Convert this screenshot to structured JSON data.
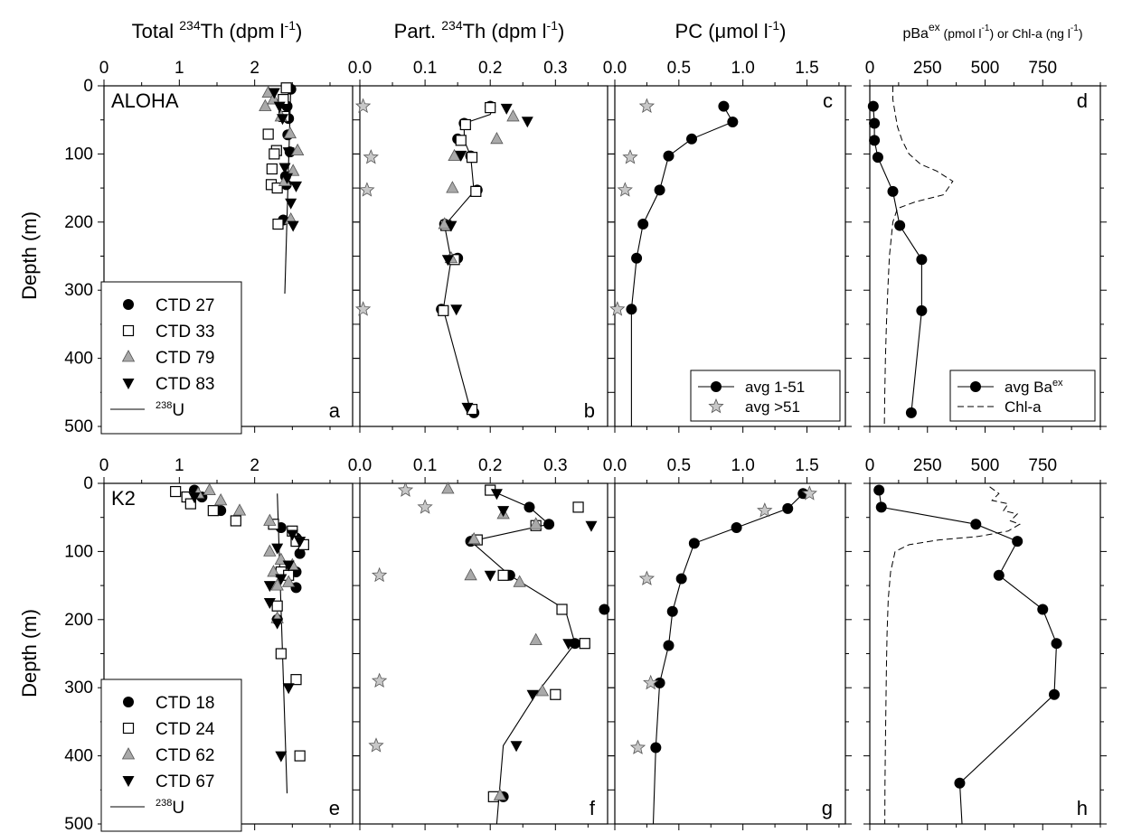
{
  "colors": {
    "ink": "#000000",
    "grey_marker": "#a9a9a9",
    "star_fill": "#c8c8c8",
    "background": "#ffffff"
  },
  "column_headers": [
    {
      "main": "Total ",
      "sup": "234",
      "tail": "Th (dpm l",
      "sup2": "-1",
      "end": ")"
    },
    {
      "main": "Part. ",
      "sup": "234",
      "tail": "Th (dpm l",
      "sup2": "-1",
      "end": ")"
    },
    {
      "main": "PC (",
      "mu": "μ",
      "tail": "mol l",
      "sup2": "-1",
      "end": ")"
    },
    {
      "main": "pBa",
      "sup": "ex",
      "tail": " (pmol l",
      "sup2": "-1",
      "mid": ") or Chl-a (ng l",
      "sup3": "-1",
      "end": ")"
    }
  ],
  "ylabel": "Depth (m)",
  "chart_data": [
    {
      "panel": "a",
      "station": "ALOHA",
      "type": "scatter",
      "xlim": [
        0,
        3.3
      ],
      "ylim": [
        0,
        500
      ],
      "xticks": [
        "0",
        "1",
        "2"
      ],
      "xtick_values": [
        0,
        1,
        2
      ],
      "yticks": [
        "0",
        "100",
        "200",
        "300",
        "400",
        "500"
      ],
      "legend": {
        "placement": "bottom-left",
        "entries": [
          "CTD 27",
          "CTD 33",
          "CTD 79",
          "CTD 83"
        ],
        "line_entry": {
          "sup": "238",
          "text": "U"
        }
      },
      "series": [
        {
          "name": "CTD 27",
          "marker": "circle",
          "x": [
            2.48,
            2.43,
            2.45,
            2.44,
            2.47,
            2.41,
            2.42,
            2.38
          ],
          "y": [
            5,
            30,
            48,
            72,
            97,
            133,
            145,
            197
          ]
        },
        {
          "name": "CTD 33",
          "marker": "square",
          "x": [
            2.42,
            2.38,
            2.39,
            2.18,
            2.29,
            2.26,
            2.23,
            2.22,
            2.3,
            2.31
          ],
          "y": [
            3,
            20,
            45,
            71,
            95,
            100,
            122,
            145,
            150,
            203
          ]
        },
        {
          "name": "CTD 79",
          "marker": "triangle-up",
          "x": [
            2.18,
            2.25,
            2.14,
            2.35,
            2.57,
            2.47,
            2.51,
            2.4,
            2.48
          ],
          "y": [
            10,
            20,
            30,
            45,
            95,
            70,
            125,
            140,
            196
          ]
        },
        {
          "name": "CTD 83",
          "marker": "triangle-down",
          "x": [
            2.26,
            2.33,
            2.37,
            2.45,
            2.4,
            2.43,
            2.55,
            2.48,
            2.51
          ],
          "y": [
            10,
            30,
            48,
            97,
            120,
            135,
            147,
            172,
            205
          ]
        }
      ],
      "line": {
        "name": "238U",
        "x": [
          2.48,
          2.4
        ],
        "y": [
          0,
          305
        ]
      }
    },
    {
      "panel": "b",
      "type": "scatter",
      "xlim": [
        0,
        0.38
      ],
      "ylim": [
        0,
        500
      ],
      "xticks": [
        "0.0",
        "0.1",
        "0.2",
        "0.3"
      ],
      "xtick_values": [
        0,
        0.1,
        0.2,
        0.3
      ],
      "series": [
        {
          "name": "CTD 27",
          "marker": "circle",
          "x": [
            0.2,
            0.16,
            0.15,
            0.17,
            0.18,
            0.13,
            0.15,
            0.125,
            0.175
          ],
          "y": [
            30,
            55,
            78,
            103,
            153,
            203,
            253,
            328,
            480
          ]
        },
        {
          "name": "CTD 33",
          "marker": "square",
          "x": [
            0.2,
            0.162,
            0.155,
            0.172,
            0.178,
            0.132,
            0.145,
            0.128,
            0.172
          ],
          "y": [
            32,
            57,
            80,
            105,
            155,
            205,
            255,
            330,
            475
          ]
        },
        {
          "name": "CTD 79",
          "marker": "triangle-up",
          "x": [
            0.235,
            0.21,
            0.145,
            0.142,
            0.13,
            0.14
          ],
          "y": [
            45,
            78,
            103,
            150,
            203,
            253
          ]
        },
        {
          "name": "CTD 83",
          "marker": "triangle-down",
          "x": [
            0.225,
            0.257,
            0.155,
            0.14,
            0.135,
            0.148,
            0.165
          ],
          "y": [
            33,
            52,
            102,
            205,
            255,
            328,
            472
          ]
        },
        {
          "name": "avg >51",
          "marker": "star",
          "x": [
            0.005,
            0.017,
            0.011,
            0.005
          ],
          "y": [
            30,
            105,
            153,
            328
          ]
        }
      ],
      "line": {
        "x": [
          0.205,
          0.2,
          0.16,
          0.16,
          0.17,
          0.175,
          0.13,
          0.14,
          0.128,
          0.17
        ],
        "y": [
          30,
          42,
          55,
          80,
          103,
          155,
          205,
          255,
          328,
          477
        ]
      }
    },
    {
      "panel": "c",
      "type": "scatter",
      "xlim": [
        0,
        1.8
      ],
      "ylim": [
        0,
        500
      ],
      "xticks": [
        "0.0",
        "0.5",
        "1.0",
        "1.5"
      ],
      "xtick_values": [
        0,
        0.5,
        1,
        1.5
      ],
      "legend": {
        "placement": "bottom-right",
        "entries": [
          "avg 1-51",
          "avg >51"
        ]
      },
      "series": [
        {
          "name": "avg 1-51",
          "marker": "circle",
          "x": [
            0.85,
            0.92,
            0.6,
            0.42,
            0.35,
            0.22,
            0.17,
            0.13
          ],
          "y": [
            30,
            53,
            78,
            103,
            153,
            203,
            253,
            328
          ]
        },
        {
          "name": "avg >51",
          "marker": "star",
          "x": [
            0.25,
            0.12,
            0.08,
            0.02
          ],
          "y": [
            30,
            105,
            153,
            328
          ]
        }
      ],
      "line": {
        "x": [
          0.85,
          0.92,
          0.6,
          0.42,
          0.35,
          0.22,
          0.17,
          0.13,
          0.13
        ],
        "y": [
          30,
          53,
          78,
          103,
          153,
          203,
          253,
          328,
          500
        ]
      }
    },
    {
      "panel": "d",
      "type": "scatter",
      "xlim": [
        0,
        1000
      ],
      "ylim": [
        0,
        500
      ],
      "xticks": [
        "0",
        "250",
        "500",
        "750"
      ],
      "xtick_values": [
        0,
        250,
        500,
        750
      ],
      "legend": {
        "placement": "bottom-right",
        "entries": [
          {
            "text": "avg Ba",
            "sup": "ex"
          },
          {
            "text": "Chl-a"
          }
        ]
      },
      "series": [
        {
          "name": "avg Baex",
          "marker": "circle",
          "x": [
            15,
            20,
            20,
            35,
            100,
            130,
            225,
            225,
            180
          ],
          "y": [
            30,
            55,
            80,
            105,
            155,
            205,
            255,
            330,
            480
          ]
        },
        {
          "name": "Chl-a",
          "style": "dashed",
          "x": [
            100,
            100,
            110,
            120,
            140,
            170,
            220,
            290,
            360,
            320,
            200,
            120,
            100,
            85,
            78,
            72,
            68,
            65,
            63
          ],
          "y": [
            0,
            20,
            40,
            60,
            80,
            100,
            115,
            125,
            140,
            160,
            170,
            180,
            200,
            250,
            300,
            350,
            400,
            450,
            500
          ]
        }
      ],
      "line": {
        "x": [
          15,
          20,
          20,
          35,
          100,
          130,
          225,
          225,
          180
        ],
        "y": [
          30,
          55,
          80,
          105,
          155,
          205,
          255,
          330,
          480
        ]
      }
    },
    {
      "panel": "e",
      "station": "K2",
      "type": "scatter",
      "xlim": [
        0,
        3.3
      ],
      "ylim": [
        0,
        500
      ],
      "xticks": [
        "0",
        "1",
        "2"
      ],
      "xtick_values": [
        0,
        1,
        2
      ],
      "yticks": [
        "0",
        "100",
        "200",
        "300",
        "400",
        "500"
      ],
      "legend": {
        "placement": "bottom-left",
        "entries": [
          "CTD 18",
          "CTD 24",
          "CTD 62",
          "CTD 67"
        ],
        "line_entry": {
          "sup": "238",
          "text": "U"
        }
      },
      "series": [
        {
          "name": "CTD 18",
          "marker": "circle",
          "x": [
            1.2,
            1.3,
            1.55,
            2.35,
            2.55,
            2.6,
            2.55,
            2.55,
            2.3
          ],
          "y": [
            10,
            20,
            40,
            65,
            80,
            103,
            130,
            153,
            200
          ]
        },
        {
          "name": "CTD 24",
          "marker": "square",
          "x": [
            0.95,
            1.1,
            1.15,
            1.45,
            1.75,
            2.25,
            2.5,
            2.55,
            2.65,
            2.35,
            2.45,
            2.3,
            2.35,
            2.55,
            2.6
          ],
          "y": [
            12,
            20,
            30,
            40,
            55,
            60,
            70,
            85,
            90,
            130,
            135,
            180,
            250,
            288,
            400
          ]
        },
        {
          "name": "CTD 62",
          "marker": "triangle-up",
          "x": [
            1.25,
            1.4,
            1.55,
            1.8,
            2.2,
            2.2,
            2.35,
            2.25,
            2.3,
            2.5,
            2.45,
            2.3
          ],
          "y": [
            15,
            10,
            25,
            40,
            55,
            100,
            112,
            130,
            150,
            120,
            145,
            198
          ]
        },
        {
          "name": "CTD 67",
          "marker": "triangle-down",
          "x": [
            1.2,
            2.3,
            2.5,
            2.6,
            2.45,
            2.35,
            2.2,
            2.2,
            2.3,
            2.45,
            2.35
          ],
          "y": [
            20,
            95,
            75,
            85,
            120,
            140,
            150,
            175,
            205,
            300,
            400
          ]
        }
      ],
      "line": {
        "name": "238U",
        "x": [
          2.3,
          2.43
        ],
        "y": [
          15,
          455
        ]
      }
    },
    {
      "panel": "f",
      "type": "scatter",
      "xlim": [
        0,
        0.38
      ],
      "ylim": [
        0,
        500
      ],
      "xticks": [
        "0.0",
        "0.1",
        "0.2",
        "0.3"
      ],
      "xtick_values": [
        0,
        0.1,
        0.2,
        0.3
      ],
      "series": [
        {
          "name": "CTD 18",
          "marker": "circle",
          "x": [
            0.2,
            0.26,
            0.29,
            0.17,
            0.23,
            0.375,
            0.33,
            0.22
          ],
          "y": [
            10,
            35,
            60,
            85,
            135,
            185,
            235,
            460
          ]
        },
        {
          "name": "CTD 24",
          "marker": "square",
          "x": [
            0.2,
            0.335,
            0.27,
            0.18,
            0.22,
            0.31,
            0.345,
            0.3,
            0.205
          ],
          "y": [
            10,
            35,
            62,
            83,
            135,
            185,
            235,
            310,
            460
          ]
        },
        {
          "name": "CTD 62",
          "marker": "triangle-up",
          "x": [
            0.135,
            0.22,
            0.27,
            0.175,
            0.17,
            0.245,
            0.27,
            0.28,
            0.215
          ],
          "y": [
            8,
            45,
            60,
            82,
            135,
            145,
            230,
            305,
            458
          ]
        },
        {
          "name": "CTD 67",
          "marker": "triangle-down",
          "x": [
            0.21,
            0.22,
            0.355,
            0.2,
            0.32,
            0.265,
            0.24
          ],
          "y": [
            15,
            40,
            62,
            135,
            235,
            310,
            385
          ]
        },
        {
          "name": "avg >51",
          "marker": "star",
          "x": [
            0.07,
            0.1,
            0.03,
            0.03,
            0.025
          ],
          "y": [
            10,
            35,
            135,
            290,
            385
          ]
        }
      ],
      "line": {
        "x": [
          0.2,
          0.26,
          0.29,
          0.17,
          0.23,
          0.315,
          0.33,
          0.27,
          0.22,
          0.21
        ],
        "y": [
          10,
          35,
          60,
          85,
          135,
          185,
          235,
          310,
          385,
          500
        ]
      }
    },
    {
      "panel": "g",
      "type": "scatter",
      "xlim": [
        0,
        1.8
      ],
      "ylim": [
        0,
        500
      ],
      "xticks": [
        "0.0",
        "0.5",
        "1.0",
        "1.5"
      ],
      "xtick_values": [
        0,
        0.5,
        1,
        1.5
      ],
      "series": [
        {
          "name": "avg 1-51",
          "marker": "circle",
          "x": [
            1.47,
            1.35,
            0.95,
            0.62,
            0.52,
            0.45,
            0.42,
            0.35,
            0.32
          ],
          "y": [
            15,
            37,
            65,
            88,
            140,
            188,
            238,
            293,
            388
          ]
        },
        {
          "name": "avg >51",
          "marker": "star",
          "x": [
            1.52,
            1.17,
            0.25,
            0.28,
            0.18
          ],
          "y": [
            15,
            40,
            140,
            293,
            388
          ]
        }
      ],
      "line": {
        "x": [
          1.47,
          1.35,
          0.95,
          0.62,
          0.52,
          0.45,
          0.42,
          0.35,
          0.32,
          0.3
        ],
        "y": [
          15,
          37,
          65,
          88,
          140,
          188,
          238,
          293,
          388,
          500
        ]
      }
    },
    {
      "panel": "h",
      "type": "scatter",
      "xlim": [
        0,
        1000
      ],
      "ylim": [
        0,
        500
      ],
      "xticks": [
        "0",
        "250",
        "500",
        "750"
      ],
      "xtick_values": [
        0,
        250,
        500,
        750
      ],
      "series": [
        {
          "name": "avg Baex",
          "marker": "circle",
          "x": [
            40,
            50,
            460,
            640,
            560,
            750,
            810,
            800,
            390
          ],
          "y": [
            10,
            35,
            60,
            85,
            135,
            185,
            235,
            310,
            440
          ]
        },
        {
          "name": "Chl-a",
          "style": "dashed",
          "x": [
            520,
            560,
            530,
            600,
            580,
            640,
            610,
            650,
            600,
            470,
            300,
            170,
            110,
            90,
            80,
            75,
            72,
            70,
            68,
            66,
            65
          ],
          "y": [
            5,
            15,
            25,
            30,
            40,
            45,
            55,
            60,
            70,
            78,
            83,
            90,
            100,
            130,
            170,
            220,
            270,
            320,
            380,
            440,
            500
          ]
        }
      ],
      "line": {
        "x": [
          40,
          50,
          460,
          640,
          560,
          750,
          810,
          800,
          390,
          400
        ],
        "y": [
          10,
          35,
          60,
          85,
          135,
          185,
          235,
          310,
          440,
          500
        ]
      }
    }
  ]
}
